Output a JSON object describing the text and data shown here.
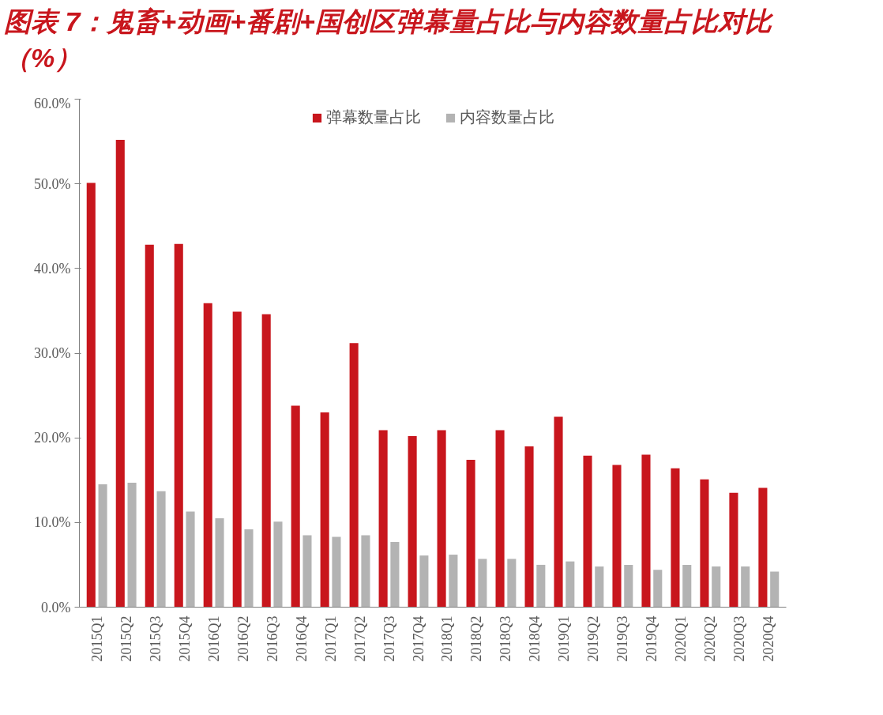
{
  "chart_data": {
    "type": "bar",
    "title": "图表 7：鬼畜+动画+番剧+国创区弹幕量占比与内容数量占比对比（%）",
    "categories": [
      "2015Q1",
      "2015Q2",
      "2015Q3",
      "2015Q4",
      "2016Q1",
      "2016Q2",
      "2016Q3",
      "2016Q4",
      "2017Q1",
      "2017Q2",
      "2017Q3",
      "2017Q4",
      "2018Q1",
      "2018Q2",
      "2018Q3",
      "2018Q4",
      "2019Q1",
      "2019Q2",
      "2019Q3",
      "2019Q4",
      "2020Q1",
      "2020Q2",
      "2020Q3",
      "2020Q4"
    ],
    "series": [
      {
        "name": "弹幕数量占比",
        "color": "#c8161d",
        "values": [
          50.1,
          55.2,
          42.8,
          42.9,
          35.9,
          34.9,
          34.6,
          23.8,
          23.0,
          31.2,
          20.9,
          20.2,
          20.9,
          17.4,
          20.9,
          19.0,
          22.5,
          17.9,
          16.8,
          18.0,
          16.4,
          15.1,
          13.5,
          14.1
        ]
      },
      {
        "name": "内容数量占比",
        "color": "#b3b3b3",
        "values": [
          14.5,
          14.7,
          13.7,
          11.3,
          10.5,
          9.2,
          10.1,
          8.5,
          8.3,
          8.5,
          7.7,
          6.1,
          6.2,
          5.7,
          5.7,
          5.0,
          5.4,
          4.8,
          5.0,
          4.4,
          5.0,
          4.8,
          4.8,
          4.2
        ]
      }
    ],
    "ylim": [
      0,
      60
    ],
    "yticks": [
      {
        "value": 0,
        "label": "0.0%"
      },
      {
        "value": 10,
        "label": "10.0%"
      },
      {
        "value": 20,
        "label": "20.0%"
      },
      {
        "value": 30,
        "label": "30.0%"
      },
      {
        "value": 40,
        "label": "40.0%"
      },
      {
        "value": 50,
        "label": "50.0%"
      },
      {
        "value": 60,
        "label": "60.0%"
      }
    ],
    "grid": false,
    "legend": "top"
  }
}
